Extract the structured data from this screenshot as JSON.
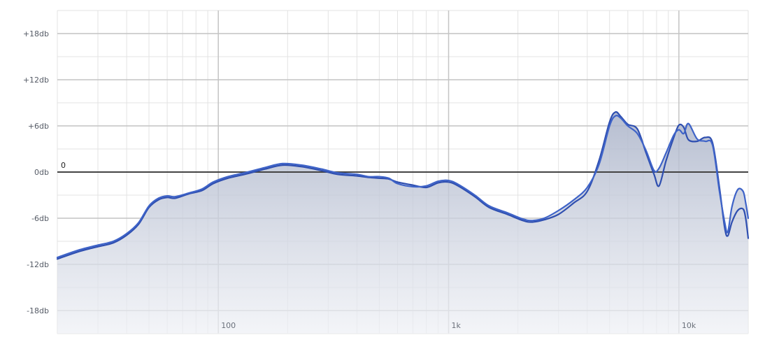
{
  "chart_data": {
    "type": "line",
    "title": "",
    "xlabel": "",
    "ylabel": "",
    "x_scale": "log",
    "xlim": [
      20,
      20000
    ],
    "ylim": [
      -21,
      21
    ],
    "grid": true,
    "legend": "none",
    "zero_line_label": "0",
    "x_ticks": [
      {
        "value": 100,
        "label": "100"
      },
      {
        "value": 1000,
        "label": "1k"
      },
      {
        "value": 10000,
        "label": "10k"
      }
    ],
    "y_ticks": [
      {
        "value": 18,
        "label": "+18db"
      },
      {
        "value": 12,
        "label": "+12db"
      },
      {
        "value": 6,
        "label": "+6db"
      },
      {
        "value": 0,
        "label": "0db"
      },
      {
        "value": -6,
        "label": "-6db"
      },
      {
        "value": -12,
        "label": "-12db"
      },
      {
        "value": -18,
        "label": "-18db"
      }
    ],
    "colors": {
      "series_a": "#2f4fb0",
      "series_b": "#3e63c8",
      "fill": "#c6ccdb",
      "zero_line": "#444444",
      "major_grid": "#c4c4c4",
      "minor_grid": "#e3e3e3"
    },
    "series": [
      {
        "points": [
          [
            20,
            -11.3
          ],
          [
            25,
            -10.3
          ],
          [
            30,
            -9.7
          ],
          [
            35,
            -9.2
          ],
          [
            40,
            -8.2
          ],
          [
            45,
            -6.8
          ],
          [
            50,
            -4.6
          ],
          [
            55,
            -3.6
          ],
          [
            60,
            -3.3
          ],
          [
            65,
            -3.4
          ],
          [
            75,
            -2.8
          ],
          [
            85,
            -2.4
          ],
          [
            95,
            -1.5
          ],
          [
            110,
            -0.8
          ],
          [
            130,
            -0.3
          ],
          [
            160,
            0.4
          ],
          [
            190,
            0.9
          ],
          [
            230,
            0.7
          ],
          [
            280,
            0.2
          ],
          [
            330,
            -0.3
          ],
          [
            400,
            -0.5
          ],
          [
            450,
            -0.7
          ],
          [
            500,
            -0.8
          ],
          [
            550,
            -0.9
          ],
          [
            600,
            -1.3
          ],
          [
            700,
            -1.7
          ],
          [
            800,
            -2.0
          ],
          [
            900,
            -1.4
          ],
          [
            1000,
            -1.3
          ],
          [
            1100,
            -1.8
          ],
          [
            1300,
            -3.2
          ],
          [
            1500,
            -4.6
          ],
          [
            1800,
            -5.5
          ],
          [
            2100,
            -6.3
          ],
          [
            2300,
            -6.5
          ],
          [
            2600,
            -6.2
          ],
          [
            3000,
            -5.5
          ],
          [
            3500,
            -4.0
          ],
          [
            4000,
            -2.5
          ],
          [
            4500,
            1.5
          ],
          [
            5000,
            6.5
          ],
          [
            5300,
            7.8
          ],
          [
            5600,
            7.2
          ],
          [
            6000,
            6.2
          ],
          [
            6600,
            5.6
          ],
          [
            7200,
            2.5
          ],
          [
            7800,
            -0.3
          ],
          [
            8200,
            -1.8
          ],
          [
            8800,
            1.5
          ],
          [
            9500,
            4.5
          ],
          [
            10000,
            6.1
          ],
          [
            10500,
            5.8
          ],
          [
            11000,
            4.2
          ],
          [
            12000,
            4.0
          ],
          [
            13000,
            4.5
          ],
          [
            14000,
            3.8
          ],
          [
            15000,
            -2.0
          ],
          [
            15800,
            -7.2
          ],
          [
            16300,
            -8.3
          ],
          [
            17000,
            -6.5
          ],
          [
            18000,
            -5.0
          ],
          [
            19000,
            -4.8
          ],
          [
            19500,
            -6.0
          ],
          [
            20000,
            -8.6
          ]
        ]
      },
      {
        "points": [
          [
            20,
            -11.1
          ],
          [
            25,
            -10.1
          ],
          [
            30,
            -9.5
          ],
          [
            35,
            -9.0
          ],
          [
            40,
            -8.0
          ],
          [
            45,
            -6.6
          ],
          [
            50,
            -4.4
          ],
          [
            55,
            -3.4
          ],
          [
            60,
            -3.1
          ],
          [
            65,
            -3.2
          ],
          [
            75,
            -2.7
          ],
          [
            85,
            -2.2
          ],
          [
            95,
            -1.3
          ],
          [
            110,
            -0.6
          ],
          [
            130,
            -0.1
          ],
          [
            160,
            0.6
          ],
          [
            190,
            1.1
          ],
          [
            230,
            0.9
          ],
          [
            280,
            0.4
          ],
          [
            330,
            -0.1
          ],
          [
            400,
            -0.3
          ],
          [
            450,
            -0.6
          ],
          [
            500,
            -0.6
          ],
          [
            550,
            -0.8
          ],
          [
            600,
            -1.5
          ],
          [
            700,
            -1.9
          ],
          [
            800,
            -1.8
          ],
          [
            900,
            -1.2
          ],
          [
            1000,
            -1.1
          ],
          [
            1100,
            -1.6
          ],
          [
            1300,
            -3.0
          ],
          [
            1500,
            -4.4
          ],
          [
            1800,
            -5.3
          ],
          [
            2100,
            -6.1
          ],
          [
            2300,
            -6.3
          ],
          [
            2600,
            -6.0
          ],
          [
            3000,
            -5.0
          ],
          [
            3500,
            -3.6
          ],
          [
            4000,
            -2.0
          ],
          [
            4500,
            1.0
          ],
          [
            5000,
            6.0
          ],
          [
            5300,
            7.3
          ],
          [
            5600,
            7.0
          ],
          [
            6000,
            6.0
          ],
          [
            6600,
            5.0
          ],
          [
            7200,
            2.8
          ],
          [
            7800,
            0.2
          ],
          [
            8200,
            0.5
          ],
          [
            8800,
            2.5
          ],
          [
            9500,
            4.8
          ],
          [
            10000,
            5.5
          ],
          [
            10500,
            5.0
          ],
          [
            11000,
            6.3
          ],
          [
            12000,
            4.3
          ],
          [
            13000,
            4.0
          ],
          [
            14000,
            3.5
          ],
          [
            15000,
            -2.5
          ],
          [
            15800,
            -6.5
          ],
          [
            16300,
            -7.8
          ],
          [
            17000,
            -4.5
          ],
          [
            18000,
            -2.3
          ],
          [
            19000,
            -2.5
          ],
          [
            19500,
            -4.0
          ],
          [
            20000,
            -6.0
          ]
        ]
      }
    ]
  }
}
